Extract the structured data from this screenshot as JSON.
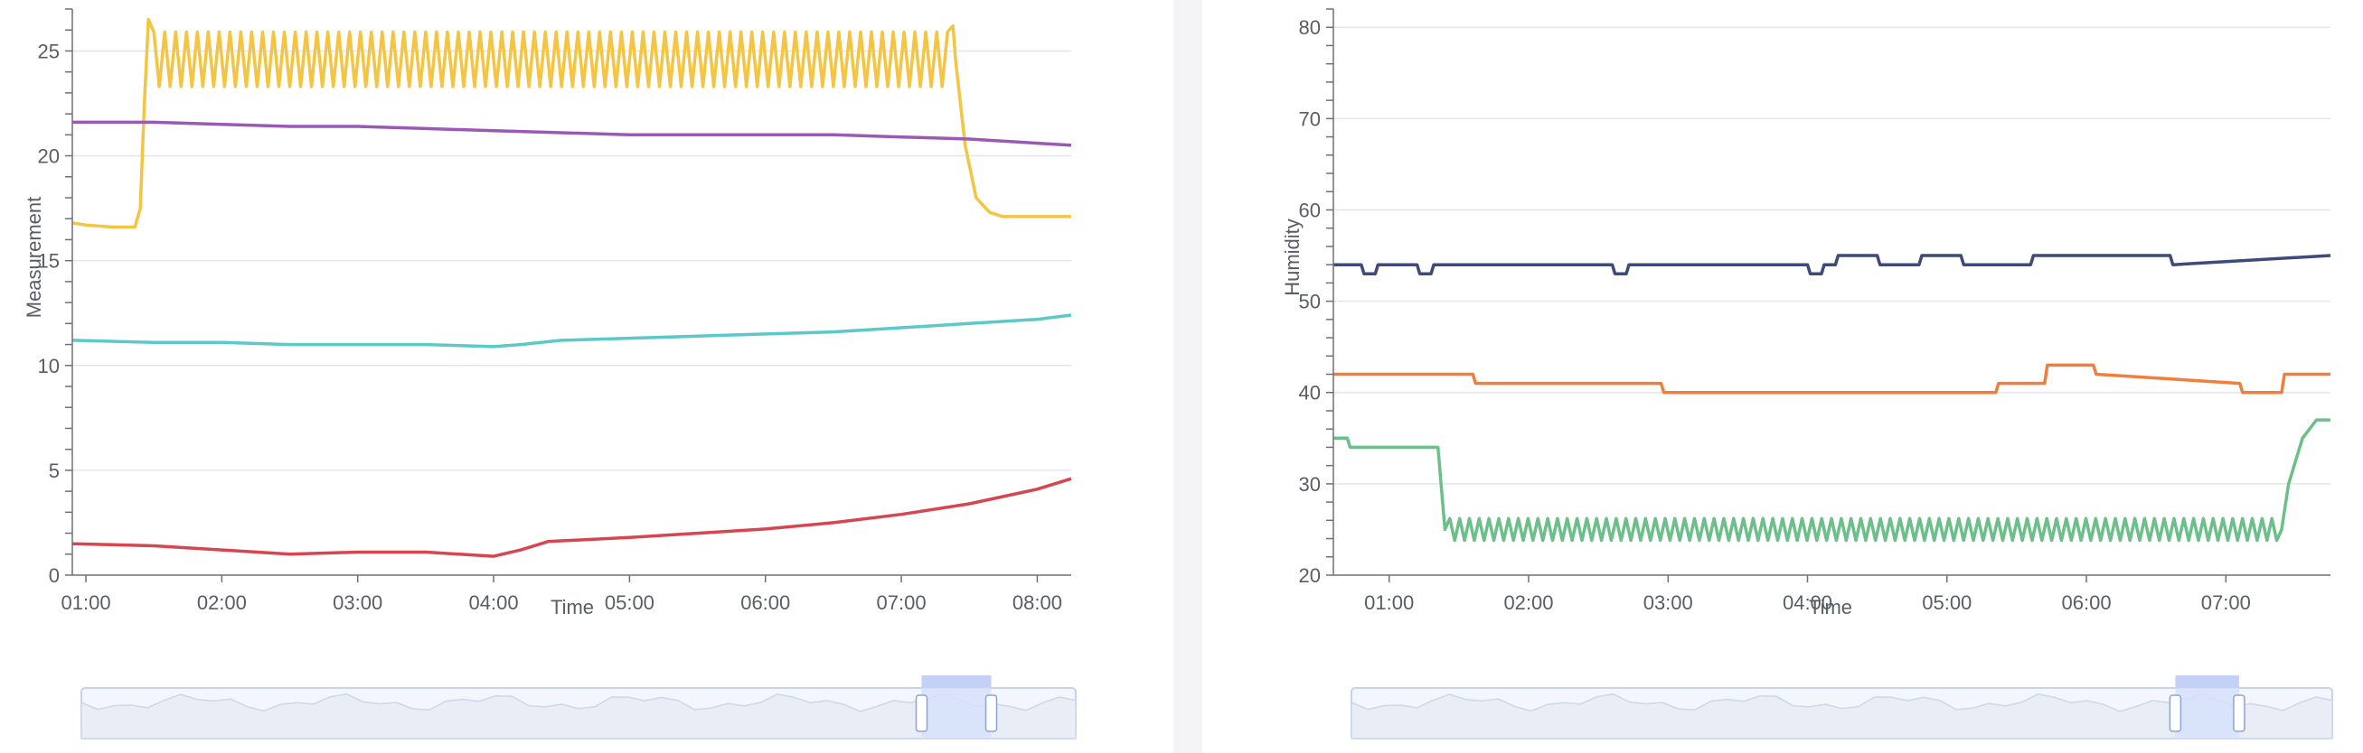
{
  "colors": {
    "panel_bg": "#ffffff",
    "gutter_bg": "#f4f4f6",
    "grid": "#e3e6ee",
    "axis": "#6e7079",
    "slider_border": "#c7d2ec",
    "slider_fill": "#f3f6fc",
    "slider_window": "#d6e0fa",
    "slider_handle_top": "#c3d1f7"
  },
  "chart_data": [
    {
      "type": "line",
      "xlabel": "Time",
      "ylabel": "Measurement",
      "x_ticks": [
        "01:00",
        "02:00",
        "03:00",
        "04:00",
        "05:00",
        "06:00",
        "07:00",
        "08:00"
      ],
      "x_range_hours": [
        0.9,
        8.25
      ],
      "ylim": [
        0,
        27
      ],
      "y_ticks": [
        0,
        5,
        10,
        15,
        20,
        25
      ],
      "grid": true,
      "legend": "none",
      "series": [
        {
          "color": "#f4c542",
          "x": [
            0.9,
            1.0,
            1.2,
            1.36,
            1.4,
            1.43,
            1.46,
            7.38,
            7.4,
            7.47,
            7.55,
            7.65,
            7.75,
            8.25
          ],
          "y": [
            16.8,
            16.7,
            16.6,
            16.6,
            17.5,
            22.5,
            26.5,
            26.2,
            24.5,
            20.5,
            18.0,
            17.3,
            17.1,
            17.1
          ],
          "oscillation": {
            "x_start": 1.46,
            "x_end": 7.38,
            "low": 23.3,
            "high": 25.9,
            "period_h": 0.08
          }
        },
        {
          "color": "#9b59b6",
          "x": [
            0.9,
            1.3,
            1.5,
            2.0,
            2.5,
            3.0,
            3.5,
            4.0,
            4.5,
            5.0,
            5.5,
            6.0,
            6.5,
            7.0,
            7.5,
            8.0,
            8.25
          ],
          "y": [
            21.6,
            21.6,
            21.6,
            21.5,
            21.4,
            21.4,
            21.3,
            21.2,
            21.1,
            21.0,
            21.0,
            21.0,
            21.0,
            20.9,
            20.8,
            20.6,
            20.5
          ]
        },
        {
          "color": "#5cc8c8",
          "x": [
            0.9,
            1.5,
            2.0,
            2.5,
            3.0,
            3.5,
            4.0,
            4.2,
            4.5,
            5.0,
            5.5,
            6.0,
            6.5,
            7.0,
            7.5,
            8.0,
            8.25
          ],
          "y": [
            11.2,
            11.1,
            11.1,
            11.0,
            11.0,
            11.0,
            10.9,
            11.0,
            11.2,
            11.3,
            11.4,
            11.5,
            11.6,
            11.8,
            12.0,
            12.2,
            12.4
          ]
        },
        {
          "color": "#d64550",
          "x": [
            0.9,
            1.5,
            2.0,
            2.5,
            3.0,
            3.5,
            4.0,
            4.2,
            4.4,
            5.0,
            5.5,
            6.0,
            6.5,
            7.0,
            7.5,
            8.0,
            8.25
          ],
          "y": [
            1.5,
            1.4,
            1.2,
            1.0,
            1.1,
            1.1,
            0.9,
            1.2,
            1.6,
            1.8,
            2.0,
            2.2,
            2.5,
            2.9,
            3.4,
            4.1,
            4.6
          ]
        }
      ]
    },
    {
      "type": "line",
      "xlabel": "Time",
      "ylabel": "Humidity",
      "x_ticks": [
        "01:00",
        "02:00",
        "03:00",
        "04:00",
        "05:00",
        "06:00",
        "07:00"
      ],
      "x_range_hours": [
        0.6,
        7.75
      ],
      "ylim": [
        20,
        82
      ],
      "y_ticks": [
        20,
        30,
        40,
        50,
        60,
        70,
        80
      ],
      "grid": true,
      "legend": "none",
      "series": [
        {
          "color": "#3d4a7a",
          "x": [
            0.6,
            0.8,
            0.82,
            0.9,
            0.92,
            1.2,
            1.22,
            1.3,
            1.32,
            2.6,
            2.62,
            2.7,
            2.72,
            4.0,
            4.02,
            4.1,
            4.12,
            4.2,
            4.22,
            4.5,
            4.52,
            4.8,
            4.82,
            5.1,
            5.12,
            5.6,
            5.62,
            6.6,
            6.62,
            7.75
          ],
          "y": [
            54,
            54,
            53,
            53,
            54,
            54,
            53,
            53,
            54,
            54,
            53,
            53,
            54,
            54,
            53,
            53,
            54,
            54,
            55,
            55,
            54,
            54,
            55,
            55,
            54,
            54,
            55,
            55,
            54,
            55
          ]
        },
        {
          "color": "#f07f3c",
          "x": [
            0.6,
            1.6,
            1.62,
            2.95,
            2.97,
            3.05,
            3.07,
            5.35,
            5.37,
            5.7,
            5.72,
            6.05,
            6.07,
            7.1,
            7.12,
            7.4,
            7.42,
            7.75
          ],
          "y": [
            42,
            42,
            41,
            41,
            40,
            40,
            40,
            40,
            41,
            41,
            43,
            43,
            42,
            41,
            40,
            40,
            42,
            42
          ]
        },
        {
          "color": "#6dbf8a",
          "x": [
            0.6,
            0.7,
            0.72,
            1.35,
            1.4,
            7.4,
            7.45,
            7.55,
            7.65,
            7.75
          ],
          "y": [
            35,
            35,
            34,
            34,
            25,
            25,
            30,
            35,
            37,
            37
          ],
          "oscillation": {
            "x_start": 1.4,
            "x_end": 7.4,
            "low": 23.8,
            "high": 26.2,
            "period_h": 0.07
          }
        }
      ]
    }
  ],
  "sliders": [
    {
      "window_start_pct": 84.5,
      "window_end_pct": 91.5
    },
    {
      "window_start_pct": 84.0,
      "window_end_pct": 90.5
    }
  ]
}
